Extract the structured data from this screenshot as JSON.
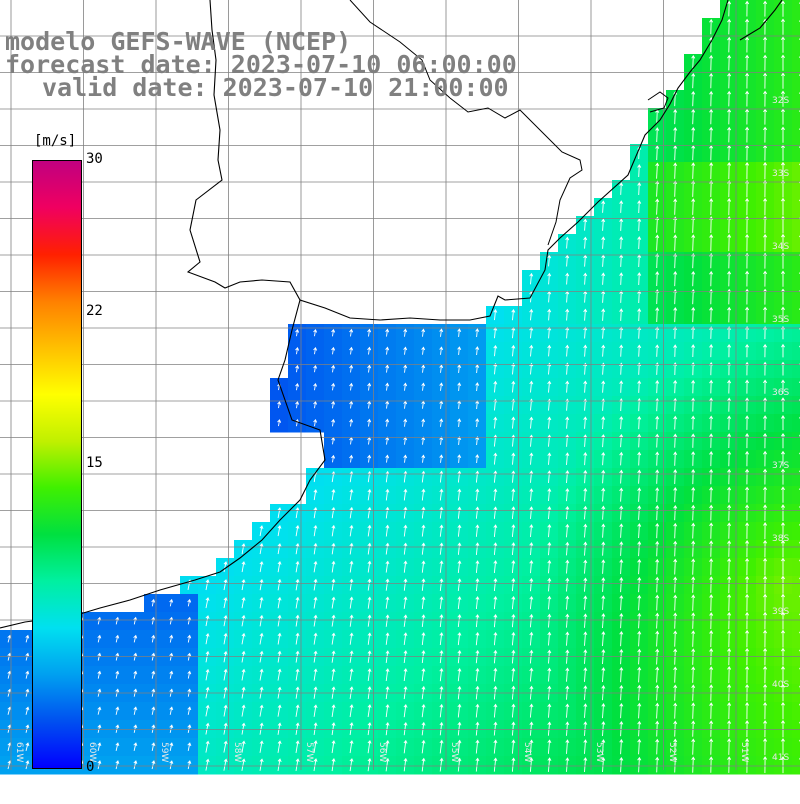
{
  "header": {
    "line1": "modelo GEFS-WAVE (NCEP)",
    "line2": "forecast date: 2023-07-10 06:00:00",
    "line3": "valid date: 2023-07-10 21:00:00"
  },
  "colorbar": {
    "unit": "[m/s]",
    "min": 0,
    "max": 30,
    "ticks": [
      "30",
      "22",
      "15",
      "0"
    ],
    "colors": [
      "#0000ff",
      "#0050f0",
      "#00a0f0",
      "#00e0f0",
      "#00f0a0",
      "#00e040",
      "#40f000",
      "#c0f000",
      "#ffff00",
      "#ffc000",
      "#ff8000",
      "#ff2000",
      "#f00060",
      "#c00080"
    ]
  },
  "map": {
    "lat_labels": [
      "32S",
      "33S",
      "34S",
      "35S",
      "36S",
      "37S",
      "38S",
      "39S",
      "40S",
      "41S"
    ],
    "lon_labels": [
      "61W",
      "60W",
      "59W",
      "58W",
      "57W",
      "56W",
      "55W",
      "54W",
      "53W",
      "52W",
      "51W"
    ],
    "arrow_color": "#ffffff",
    "coast_color": "#000000",
    "grid_color": "#808080"
  },
  "chart_data": {
    "type": "heatmap",
    "variable": "wind speed",
    "unit": "m/s",
    "scale_range": [
      0,
      30
    ],
    "regions": [
      {
        "area": "coastal / Río de la Plata",
        "speed_range": [
          2,
          6
        ]
      },
      {
        "area": "mid shelf",
        "speed_range": [
          7,
          11
        ]
      },
      {
        "area": "offshore east",
        "speed_range": [
          11,
          14
        ]
      },
      {
        "area": "southeast corner",
        "speed_range": [
          13,
          16
        ]
      }
    ],
    "dominant_direction": "toward north-northeast"
  }
}
